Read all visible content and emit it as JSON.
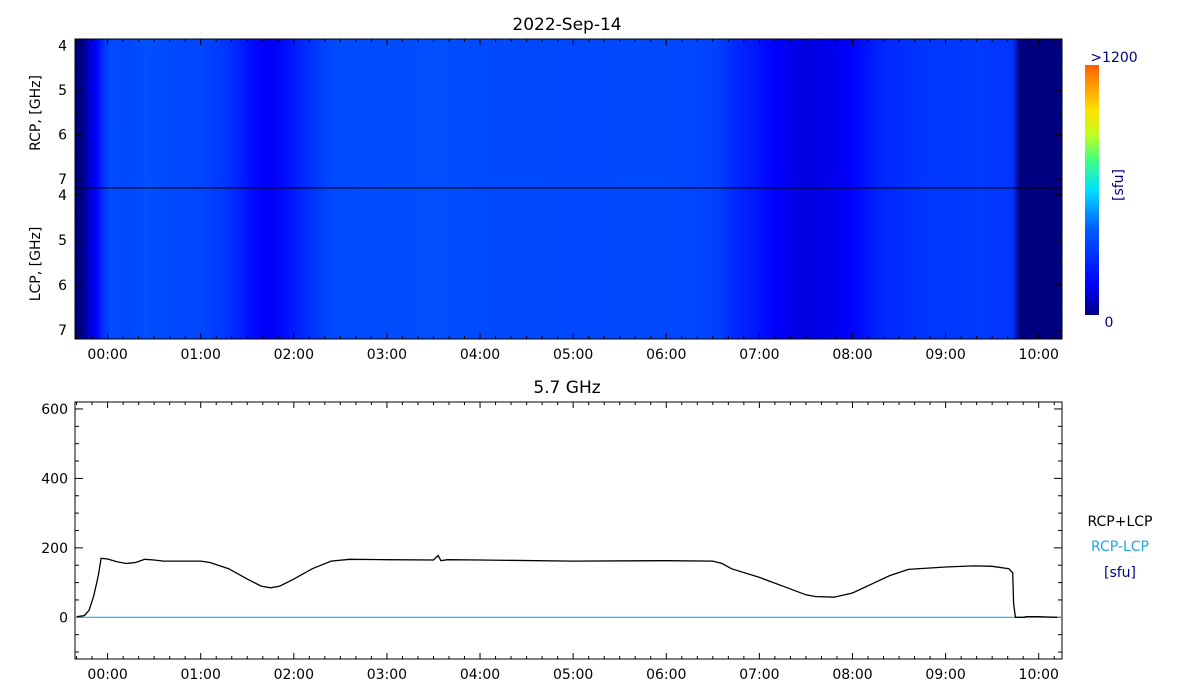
{
  "chart_data": [
    {
      "type": "heatmap",
      "title": "2022-Sep-14",
      "panels": [
        {
          "name": "RCP",
          "ylabel": "RCP, [GHz]"
        },
        {
          "name": "LCP",
          "ylabel": "LCP, [GHz]"
        }
      ],
      "y_ticks": [
        4,
        5,
        6,
        7
      ],
      "ylim": [
        3.85,
        7.2
      ],
      "x_ticks": [
        "00:00",
        "01:00",
        "02:00",
        "03:00",
        "04:00",
        "05:00",
        "06:00",
        "07:00",
        "08:00",
        "09:00",
        "10:00"
      ],
      "xlim_hours": [
        -0.35,
        10.25
      ],
      "data_end_hour": 9.74,
      "colorbar": {
        "max_label": ">1200",
        "min_label": "0",
        "unit": "[sfu]",
        "range": [
          0,
          1200
        ]
      },
      "time_hours": [
        -0.25,
        -0.22,
        0.0,
        0.2,
        0.4,
        0.6,
        1.0,
        1.3,
        1.6,
        1.75,
        2.1,
        2.4,
        3.0,
        3.55,
        4.0,
        5.0,
        6.0,
        6.55,
        6.7,
        7.0,
        7.3,
        7.55,
        7.9,
        8.3,
        8.7,
        9.0,
        9.4,
        9.72
      ],
      "intensity_sfu": [
        0,
        60,
        250,
        240,
        255,
        245,
        240,
        215,
        150,
        130,
        200,
        245,
        248,
        252,
        245,
        243,
        244,
        235,
        205,
        170,
        125,
        105,
        130,
        195,
        215,
        220,
        222,
        215
      ]
    },
    {
      "type": "line",
      "title": "5.7 GHz",
      "x_ticks": [
        "00:00",
        "01:00",
        "02:00",
        "03:00",
        "04:00",
        "05:00",
        "06:00",
        "07:00",
        "08:00",
        "09:00",
        "10:00"
      ],
      "xlim_hours": [
        -0.35,
        10.25
      ],
      "ylim": [
        -120,
        620
      ],
      "y_ticks": [
        0,
        200,
        400,
        600
      ],
      "legend": [
        "RCP+LCP",
        "RCP-LCP",
        "[sfu]"
      ],
      "legend_colors": [
        "#000000",
        "#1ea8e0",
        "#000080"
      ],
      "series": [
        {
          "name": "RCP+LCP",
          "color": "#000000",
          "x": [
            -0.33,
            -0.25,
            -0.2,
            -0.15,
            -0.1,
            -0.07,
            0.0,
            0.1,
            0.2,
            0.3,
            0.4,
            0.5,
            0.6,
            0.8,
            1.0,
            1.1,
            1.3,
            1.5,
            1.65,
            1.75,
            1.85,
            2.0,
            2.2,
            2.4,
            2.6,
            3.0,
            3.5,
            3.55,
            3.58,
            3.65,
            4.0,
            5.0,
            6.0,
            6.5,
            6.6,
            6.7,
            7.0,
            7.3,
            7.5,
            7.6,
            7.8,
            8.0,
            8.2,
            8.4,
            8.6,
            9.0,
            9.3,
            9.5,
            9.68,
            9.72,
            9.73,
            9.75,
            9.85,
            9.86,
            10.0,
            10.1,
            10.2
          ],
          "y": [
            2,
            5,
            20,
            60,
            120,
            170,
            168,
            160,
            155,
            158,
            167,
            165,
            162,
            162,
            162,
            158,
            140,
            110,
            90,
            85,
            90,
            110,
            140,
            162,
            167,
            166,
            165,
            178,
            163,
            166,
            165,
            162,
            163,
            162,
            155,
            140,
            115,
            85,
            65,
            60,
            58,
            70,
            95,
            120,
            138,
            145,
            148,
            147,
            140,
            128,
            40,
            0,
            0,
            2,
            2,
            1,
            0
          ]
        },
        {
          "name": "RCP-LCP",
          "color": "#1ea8e0",
          "x": [
            -0.35,
            10.25
          ],
          "y": [
            0,
            0
          ]
        }
      ]
    }
  ]
}
